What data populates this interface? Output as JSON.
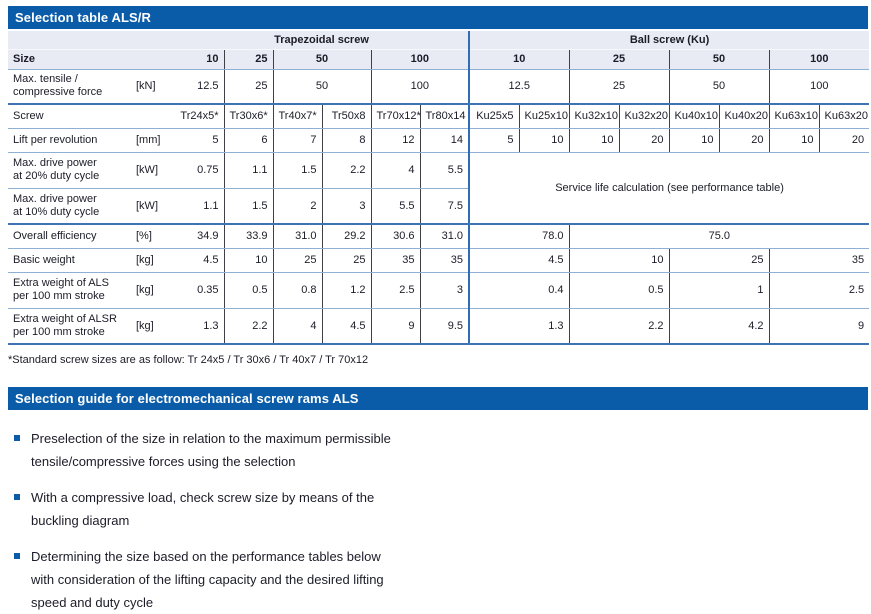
{
  "colors": {
    "accent": "#0b5ca8",
    "header_band": "#e8eaf4",
    "thick_rule": "#3f74b4",
    "thin_rule": "#8fb0d2",
    "section_divider": "#2f6eb5"
  },
  "section1": {
    "title": "Selection table ALS/R"
  },
  "table": {
    "group_headers": [
      {
        "label": "Trapezoidal screw",
        "span": 6
      },
      {
        "label": "Ball screw (Ku)",
        "span": 8
      }
    ],
    "rows": [
      {
        "key": "size",
        "label": [
          "Size"
        ],
        "label_bold": true,
        "unit": "",
        "bg": "lav",
        "bb": "thin",
        "bold_values": true,
        "cells": [
          {
            "t": "10"
          },
          {
            "t": "25"
          },
          {
            "t": "50",
            "s": 2,
            "a": "c"
          },
          {
            "t": "100",
            "s": 2,
            "a": "c"
          },
          {
            "t": "10",
            "s": 2,
            "a": "c"
          },
          {
            "t": "25",
            "s": 2,
            "a": "c"
          },
          {
            "t": "50",
            "s": 2,
            "a": "c"
          },
          {
            "t": "100",
            "s": 2,
            "a": "c"
          }
        ]
      },
      {
        "key": "max-force",
        "label": [
          "Max. tensile /",
          "compressive force"
        ],
        "unit": "[kN]",
        "bg": "",
        "bb": "thick",
        "cells": [
          {
            "t": "12.5"
          },
          {
            "t": "25"
          },
          {
            "t": "50",
            "s": 2,
            "a": "c"
          },
          {
            "t": "100",
            "s": 2,
            "a": "c"
          },
          {
            "t": "12.5",
            "s": 2,
            "a": "c"
          },
          {
            "t": "25",
            "s": 2,
            "a": "c"
          },
          {
            "t": "50",
            "s": 2,
            "a": "c"
          },
          {
            "t": "100",
            "s": 2,
            "a": "c"
          }
        ]
      },
      {
        "key": "screw",
        "label": [
          "Screw"
        ],
        "unit": "",
        "bg": "",
        "bb": "thin",
        "cells": [
          {
            "t": "Tr24x5*"
          },
          {
            "t": "Tr30x6*"
          },
          {
            "t": "Tr40x7*"
          },
          {
            "t": "Tr50x8"
          },
          {
            "t": "Tr70x12*"
          },
          {
            "t": "Tr80x14"
          },
          {
            "t": "Ku25x5"
          },
          {
            "t": "Ku25x10"
          },
          {
            "t": "Ku32x10"
          },
          {
            "t": "Ku32x20"
          },
          {
            "t": "Ku40x10"
          },
          {
            "t": "Ku40x20"
          },
          {
            "t": "Ku63x10"
          },
          {
            "t": "Ku63x20"
          }
        ]
      },
      {
        "key": "lift-per-revolution",
        "label": [
          "Lift per revolution"
        ],
        "unit": "[mm]",
        "bg": "",
        "bb": "thin",
        "cells": [
          {
            "t": "5"
          },
          {
            "t": "6"
          },
          {
            "t": "7"
          },
          {
            "t": "8"
          },
          {
            "t": "12"
          },
          {
            "t": "14"
          },
          {
            "t": "5"
          },
          {
            "t": "10"
          },
          {
            "t": "10"
          },
          {
            "t": "20"
          },
          {
            "t": "10"
          },
          {
            "t": "20"
          },
          {
            "t": "10"
          },
          {
            "t": "20"
          }
        ]
      },
      {
        "key": "power-20",
        "label": [
          "Max. drive power",
          "at 20% duty cycle"
        ],
        "unit": "[kW]",
        "bg": "",
        "bb": "thin",
        "cells": [
          {
            "t": "0.75"
          },
          {
            "t": "1.1"
          },
          {
            "t": "1.5"
          },
          {
            "t": "2.2"
          },
          {
            "t": "4"
          },
          {
            "t": "5.5"
          },
          {
            "t": "Service life calculation (see performance table)",
            "s": 8,
            "r": 2,
            "a": "c"
          }
        ]
      },
      {
        "key": "power-10",
        "label": [
          "Max. drive power",
          "at 10% duty cycle"
        ],
        "unit": "[kW]",
        "bg": "",
        "bb": "thick",
        "cells": [
          {
            "t": "1.1"
          },
          {
            "t": "1.5"
          },
          {
            "t": "2"
          },
          {
            "t": "3"
          },
          {
            "t": "5.5"
          },
          {
            "t": "7.5"
          }
        ]
      },
      {
        "key": "overall-efficiency",
        "label": [
          "Overall efficiency"
        ],
        "unit": "[%]",
        "bg": "",
        "bb": "thin",
        "cells": [
          {
            "t": "34.9"
          },
          {
            "t": "33.9"
          },
          {
            "t": "31.0"
          },
          {
            "t": "29.2"
          },
          {
            "t": "30.6"
          },
          {
            "t": "31.0"
          },
          {
            "t": "78.0",
            "s": 2
          },
          {
            "t": "75.0",
            "s": 6,
            "a": "c"
          }
        ]
      },
      {
        "key": "basic-weight",
        "label": [
          "Basic weight"
        ],
        "unit": "[kg]",
        "bg": "",
        "bb": "thin",
        "cells": [
          {
            "t": "4.5"
          },
          {
            "t": "10"
          },
          {
            "t": "25"
          },
          {
            "t": "25"
          },
          {
            "t": "35"
          },
          {
            "t": "35"
          },
          {
            "t": "4.5",
            "s": 2
          },
          {
            "t": "10",
            "s": 2
          },
          {
            "t": "25",
            "s": 2
          },
          {
            "t": "35",
            "s": 2
          }
        ]
      },
      {
        "key": "extra-weight-als",
        "label": [
          "Extra weight of ALS",
          "per 100 mm stroke"
        ],
        "unit": "[kg]",
        "bg": "",
        "bb": "thin",
        "cells": [
          {
            "t": "0.35"
          },
          {
            "t": "0.5"
          },
          {
            "t": "0.8"
          },
          {
            "t": "1.2"
          },
          {
            "t": "2.5"
          },
          {
            "t": "3"
          },
          {
            "t": "0.4",
            "s": 2
          },
          {
            "t": "0.5",
            "s": 2
          },
          {
            "t": "1",
            "s": 2
          },
          {
            "t": "2.5",
            "s": 2
          }
        ]
      },
      {
        "key": "extra-weight-alsr",
        "label": [
          "Extra weight of ALSR",
          "per 100 mm stroke"
        ],
        "unit": "[kg]",
        "bg": "",
        "bb": "thick",
        "cells": [
          {
            "t": "1.3"
          },
          {
            "t": "2.2"
          },
          {
            "t": "4"
          },
          {
            "t": "4.5"
          },
          {
            "t": "9"
          },
          {
            "t": "9.5"
          },
          {
            "t": "1.3",
            "s": 2
          },
          {
            "t": "2.2",
            "s": 2
          },
          {
            "t": "4.2",
            "s": 2
          },
          {
            "t": "9",
            "s": 2
          }
        ]
      }
    ]
  },
  "footnote": "*Standard screw sizes are as follow: Tr 24x5 / Tr 30x6 / Tr 40x7 / Tr 70x12",
  "section2": {
    "title": "Selection guide for electromechanical screw rams ALS",
    "bullets": [
      [
        "Preselection of the size in relation to the maximum permissible",
        "tensile/compressive forces using the selection"
      ],
      [
        "With a compressive load, check screw size by means of the",
        "buckling diagram"
      ],
      [
        "Determining the size based on the performance tables below",
        "with consideration of the lifting capacity and the desired lifting",
        "speed and duty cycle"
      ]
    ]
  }
}
